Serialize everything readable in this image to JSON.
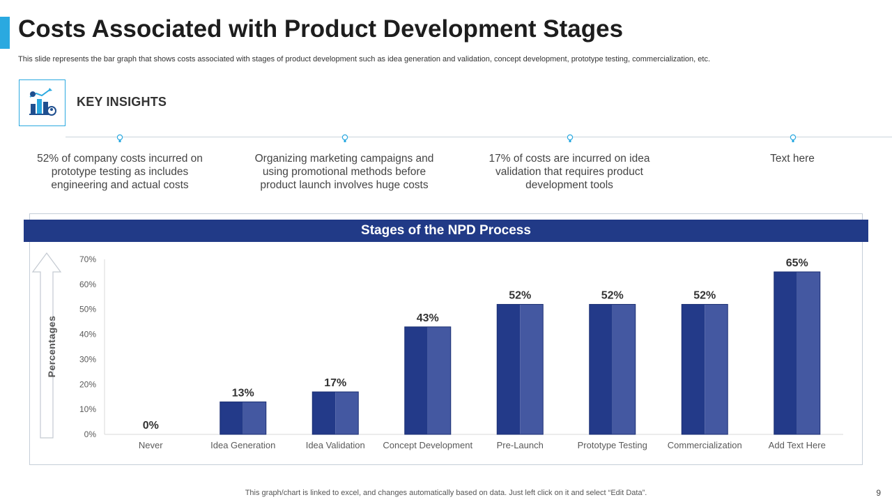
{
  "header": {
    "title": "Costs Associated with Product Development Stages",
    "subtitle": "This slide represents the bar graph that shows costs associated with stages of product development such as idea generation and validation, concept development, prototype testing, commercialization, etc."
  },
  "insights": {
    "title": "KEY INSIGHTS",
    "icon": "chart-analytics-icon",
    "items": [
      "52% of company costs incurred on prototype testing as includes engineering and actual costs",
      "Organizing marketing campaigns and using promotional methods before product launch involves huge costs",
      "17% of costs are incurred on idea validation that requires product development tools",
      "Text here"
    ]
  },
  "colors": {
    "accent": "#2aa9e0",
    "header_bg": "#213a87",
    "bar_dark": "#233a89",
    "bar_light": "#4458a1"
  },
  "chart_data": {
    "type": "bar",
    "title": "Stages of the NPD Process",
    "xlabel": "",
    "ylabel": "Percentages",
    "categories": [
      "Never",
      "Idea Generation",
      "Idea Validation",
      "Concept Development",
      "Pre-Launch",
      "Prototype Testing",
      "Commercialization",
      "Add Text Here"
    ],
    "values": [
      0,
      13,
      17,
      43,
      52,
      52,
      52,
      65
    ],
    "data_labels": [
      "0%",
      "13%",
      "17%",
      "43%",
      "52%",
      "52%",
      "52%",
      "65%"
    ],
    "yticks": [
      "0%",
      "10%",
      "20%",
      "30%",
      "40%",
      "50%",
      "60%",
      "70%"
    ],
    "ylim": [
      0,
      70
    ],
    "grid": false,
    "legend": "none"
  },
  "footer": {
    "note": "This graph/chart is linked to excel, and changes automatically based on data. Just left click on it and select “Edit Data”.",
    "page": "9"
  }
}
